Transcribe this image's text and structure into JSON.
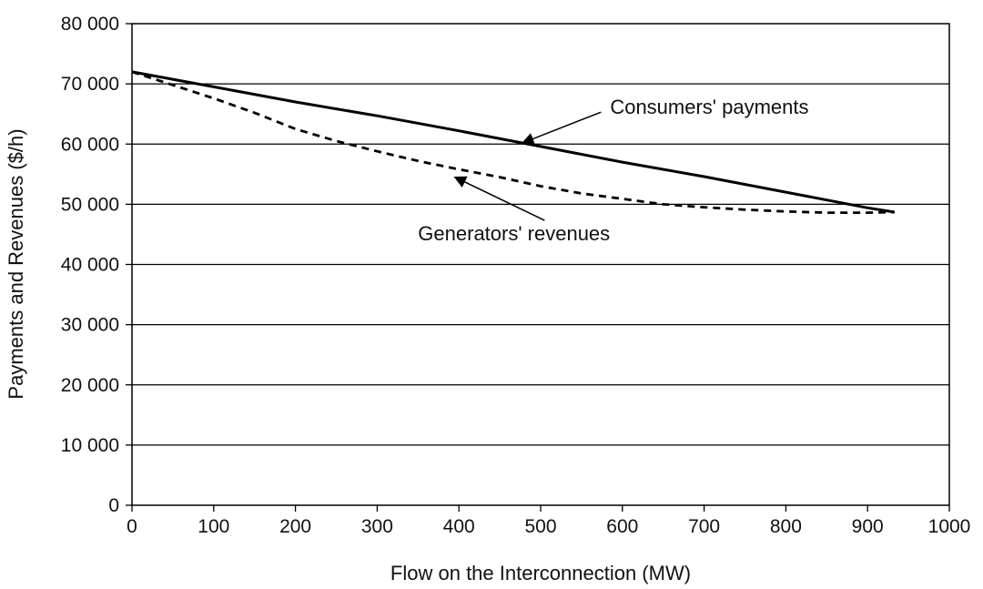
{
  "chart_data": {
    "type": "line",
    "title": "",
    "xlabel": "Flow on the Interconnection (MW)",
    "ylabel": "Payments and Revenues ($/h)",
    "xlim": [
      0,
      1000
    ],
    "ylim": [
      0,
      80000
    ],
    "xticks": [
      0,
      100,
      200,
      300,
      400,
      500,
      600,
      700,
      800,
      900,
      1000
    ],
    "xtick_labels": [
      "0",
      "100",
      "200",
      "300",
      "400",
      "500",
      "600",
      "700",
      "800",
      "900",
      "1000"
    ],
    "yticks": [
      0,
      10000,
      20000,
      30000,
      40000,
      50000,
      60000,
      70000,
      80000
    ],
    "ytick_labels": [
      "0",
      "10 000",
      "20 000",
      "30 000",
      "40 000",
      "50 000",
      "60 000",
      "70 000",
      "80 000"
    ],
    "grid": "horizontal",
    "series": [
      {
        "name": "Consumers' payments",
        "style": "solid",
        "color": "#000000",
        "x": [
          0,
          100,
          200,
          300,
          400,
          500,
          600,
          700,
          800,
          900,
          933
        ],
        "y": [
          72000,
          69500,
          67000,
          64700,
          62200,
          59600,
          57000,
          54600,
          52000,
          49400,
          48700
        ]
      },
      {
        "name": "Generators' revenues",
        "style": "dashed",
        "color": "#000000",
        "x": [
          0,
          50,
          100,
          150,
          200,
          250,
          300,
          350,
          400,
          450,
          500,
          550,
          600,
          650,
          700,
          750,
          800,
          850,
          900,
          933
        ],
        "y": [
          72000,
          69800,
          67600,
          65200,
          62500,
          60500,
          58800,
          57200,
          55800,
          54500,
          53000,
          51800,
          50900,
          50000,
          49500,
          49100,
          48800,
          48600,
          48600,
          48700
        ]
      }
    ],
    "annotations": [
      {
        "text": "Consumers' payments",
        "target": [
          478,
          60200
        ],
        "text_at": [
          585,
          65000
        ]
      },
      {
        "text": "Generators' revenues",
        "target": [
          395,
          54500
        ],
        "text_at": [
          350,
          44000
        ]
      }
    ]
  }
}
